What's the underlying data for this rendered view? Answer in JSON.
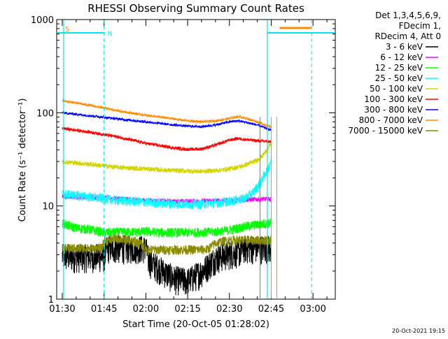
{
  "chart_data": {
    "type": "line",
    "title": "RHESSI Observing Summary Count Rates",
    "xlabel": "Start Time (20-Oct-05 01:28:02)",
    "ylabel": "Count Rate (s⁻¹ detector⁻¹)",
    "yscale": "log",
    "ylim": [
      1,
      1000
    ],
    "xlim_minutes": [
      -2,
      98
    ],
    "x_ticks": [
      {
        "label": "01:30",
        "minute": 0
      },
      {
        "label": "01:45",
        "minute": 15
      },
      {
        "label": "02:00",
        "minute": 30
      },
      {
        "label": "02:15",
        "minute": 45
      },
      {
        "label": "02:30",
        "minute": 60
      },
      {
        "label": "02:45",
        "minute": 75
      },
      {
        "label": "03:00",
        "minute": 90
      }
    ],
    "y_ticks": [
      {
        "label": "1",
        "value": 1
      },
      {
        "label": "10",
        "value": 10
      },
      {
        "label": "100",
        "value": 100
      },
      {
        "label": "1000",
        "value": 1000
      }
    ],
    "legend_header": [
      "Det 1,3,4,5,6,9,",
      "FDecim 1,",
      "RDecim 4, Att 0"
    ],
    "legend_placement": "top-right outside",
    "markers": [
      {
        "label": "S",
        "x_minute": 0,
        "color": "#ff8c00"
      },
      {
        "label": "N",
        "x_minute": 15,
        "color": "#00e5ee"
      }
    ],
    "series": [
      {
        "name": "3 - 6 keV",
        "color": "#000000",
        "x": [
          0,
          15,
          16,
          30,
          31,
          40,
          45,
          50,
          55,
          60,
          64,
          65,
          70,
          72,
          75
        ],
        "y": [
          2.9,
          2.9,
          3.6,
          3.6,
          2.6,
          1.7,
          1.6,
          2,
          2.8,
          3.1,
          3.3,
          3.6,
          3.6,
          3.6,
          3.6
        ]
      },
      {
        "name": "6 - 12 keV",
        "color": "#ff00ff",
        "x": [
          0,
          10,
          20,
          30,
          40,
          50,
          60,
          70,
          75
        ],
        "y": [
          12.5,
          12.5,
          12,
          11.5,
          11.2,
          11.3,
          11.5,
          11.8,
          11.9
        ]
      },
      {
        "name": "12 - 25 keV",
        "color": "#00ff00",
        "x": [
          0,
          5,
          10,
          15,
          16,
          30,
          35,
          45,
          55,
          60,
          65,
          70,
          75
        ],
        "y": [
          6.5,
          5.8,
          5.6,
          5.2,
          5.2,
          5.3,
          5.2,
          5.2,
          5.3,
          5.5,
          6,
          6.3,
          6.6
        ]
      },
      {
        "name": "25 - 50 keV",
        "color": "#00ffff",
        "x": [
          0,
          10,
          20,
          30,
          40,
          50,
          55,
          60,
          65,
          68,
          70,
          72,
          74,
          75
        ],
        "y": [
          13.5,
          12.5,
          11.5,
          11,
          10.5,
          10.5,
          10.8,
          11.2,
          12,
          13.5,
          16,
          20,
          26,
          32
        ]
      },
      {
        "name": "50 - 100 keV",
        "color": "#d4d400",
        "x": [
          0,
          10,
          20,
          30,
          40,
          50,
          55,
          60,
          65,
          70,
          72,
          74,
          75
        ],
        "y": [
          30,
          28,
          26,
          25,
          24,
          23.5,
          24,
          25,
          27,
          31,
          35,
          42,
          48
        ]
      },
      {
        "name": "100 - 300 keV",
        "color": "#ff0000",
        "x": [
          0,
          10,
          20,
          30,
          40,
          45,
          50,
          55,
          60,
          63,
          65,
          70,
          75
        ],
        "y": [
          68,
          62,
          55,
          47,
          42,
          40.5,
          41,
          45,
          51,
          53,
          52,
          50,
          49
        ]
      },
      {
        "name": "300 - 800 keV",
        "color": "#0000ff",
        "x": [
          0,
          10,
          20,
          30,
          40,
          45,
          50,
          55,
          60,
          63,
          65,
          70,
          75
        ],
        "y": [
          100,
          93,
          86,
          80,
          74,
          72,
          71,
          74,
          80,
          82,
          80,
          74,
          65
        ]
      },
      {
        "name": "800 - 7000 keV",
        "color": "#ff8c00",
        "x": [
          0,
          10,
          20,
          30,
          40,
          45,
          50,
          55,
          60,
          63,
          65,
          70,
          75
        ],
        "y": [
          135,
          120,
          105,
          94,
          86,
          82,
          80,
          82,
          87,
          91,
          89,
          80,
          70
        ]
      },
      {
        "name": "7000 - 15000 keV",
        "color": "#8b8b00",
        "x": [
          0,
          14,
          15,
          20,
          28,
          30,
          40,
          50,
          52,
          55,
          60,
          75
        ],
        "y": [
          3.5,
          3.5,
          4.2,
          4.5,
          4,
          3.4,
          3.4,
          3.4,
          3.4,
          4,
          4.3,
          4.3
        ]
      }
    ]
  },
  "footer": {
    "timestamp": "20-Oct-2021 19:15"
  }
}
